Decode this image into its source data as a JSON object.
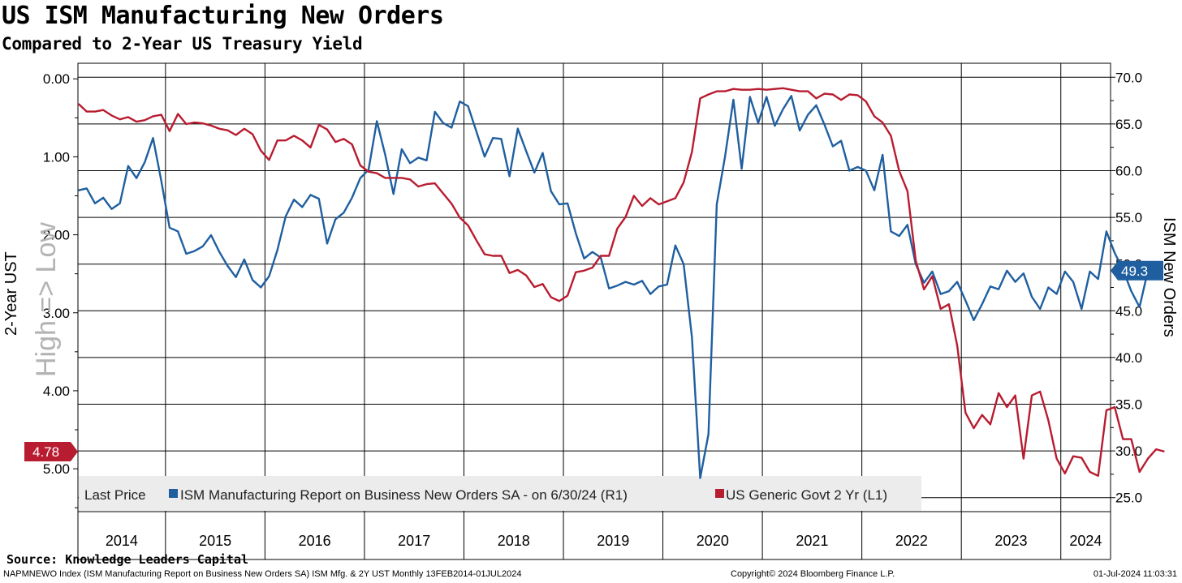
{
  "header": {
    "title": "US ISM Manufacturing New Orders",
    "subtitle": "Compared to 2-Year US Treasury Yield"
  },
  "source": "Source: Knowledge Leaders Capital",
  "footer": {
    "left": "NAPMNEWO Index (ISM Manufacturing Report on Business New Orders SA) ISM Mfg. & 2Y UST  Monthly 13FEB2014-01JUL2024",
    "middle": "Copyright© 2024 Bloomberg Finance L.P.",
    "right": "01-Jul-2024 11:03:31"
  },
  "colors": {
    "ism": "#1f5fa0",
    "ust": "#b81c30",
    "grid": "#000000",
    "legend_bg": "#ececec"
  },
  "chart_data": {
    "type": "line",
    "title": "US ISM Manufacturing New Orders",
    "subtitle": "Compared to 2-Year US Treasury Yield",
    "x_range": [
      2014.12,
      2024.5
    ],
    "years": [
      "2014",
      "2015",
      "2016",
      "2017",
      "2018",
      "2019",
      "2020",
      "2021",
      "2022",
      "2023",
      "2024"
    ],
    "left_axis": {
      "label": "2-Year UST",
      "inverted": true,
      "range": [
        -0.2,
        5.55
      ],
      "ticks": [
        "0.00",
        "1.00",
        "2.00",
        "3.00",
        "4.00",
        "5.00"
      ],
      "watermark": "High => Low"
    },
    "right_axis": {
      "label": "ISM New Orders",
      "range": [
        23.5,
        71.5
      ],
      "ticks": [
        "70.0",
        "65.0",
        "60.0",
        "55.0",
        "50.0",
        "45.0",
        "40.0",
        "35.0",
        "30.0",
        "25.0"
      ]
    },
    "legend": {
      "prefix": "Last Price",
      "ism_label": "ISM Manufacturing Report on Business New Orders SA -  on 6/30/24  (R1)",
      "ust_label": "US Generic Govt 2 Yr  (L1)",
      "placement": "bottom-left"
    },
    "last_values": {
      "ism": "49.3",
      "ust": "4.78"
    },
    "series": [
      {
        "name": "ISM Manufacturing Report on Business New Orders SA",
        "axis": "right",
        "values": [
          57.9,
          58.1,
          56.5,
          57.1,
          55.9,
          56.5,
          60.5,
          59.2,
          60.9,
          63.5,
          58.9,
          53.9,
          53.5,
          51.1,
          51.4,
          51.9,
          53.1,
          51.3,
          49.8,
          48.6,
          50.5,
          48.3,
          47.5,
          48.7,
          51.5,
          55.1,
          56.9,
          56.1,
          57.4,
          57.0,
          52.2,
          54.8,
          55.5,
          57.1,
          59.2,
          60.1,
          65.3,
          61.7,
          57.5,
          62.3,
          60.8,
          61.4,
          61.1,
          66.3,
          65.1,
          64.6,
          67.4,
          66.9,
          64.2,
          61.5,
          63.5,
          63.4,
          59.4,
          64.5,
          62.1,
          59.8,
          61.9,
          57.8,
          56.4,
          56.5,
          53.3,
          50.6,
          51.3,
          50.7,
          47.4,
          47.7,
          48.1,
          47.8,
          48.2,
          46.8,
          47.6,
          47.8,
          52.0,
          50.0,
          42.2,
          27.1,
          31.8,
          56.4,
          61.5,
          67.6,
          60.2,
          67.9,
          65.1,
          67.9,
          64.8,
          66.6,
          68.0,
          64.3,
          66.0,
          67.0,
          64.9,
          62.6,
          63.2,
          60.0,
          60.4,
          60.0,
          57.9,
          61.7,
          53.5,
          53.0,
          54.2,
          50.0,
          48.0,
          49.2,
          46.8,
          47.1,
          48.1,
          46.1,
          44.0,
          45.7,
          47.6,
          47.3,
          49.3,
          48.1,
          49.0,
          46.5,
          45.2,
          47.5,
          46.8,
          49.2,
          48.1,
          45.2,
          49.2,
          48.4,
          53.5,
          51.2,
          49.4,
          47.1,
          45.4,
          49.3
        ]
      },
      {
        "name": "US Generic Govt 2 Yr",
        "axis": "left",
        "values": [
          0.32,
          0.42,
          0.42,
          0.4,
          0.47,
          0.52,
          0.49,
          0.55,
          0.53,
          0.48,
          0.46,
          0.67,
          0.45,
          0.58,
          0.56,
          0.57,
          0.6,
          0.64,
          0.66,
          0.72,
          0.64,
          0.71,
          0.92,
          1.04,
          0.79,
          0.79,
          0.73,
          0.79,
          0.88,
          0.59,
          0.65,
          0.81,
          0.77,
          0.84,
          1.11,
          1.19,
          1.21,
          1.27,
          1.27,
          1.27,
          1.29,
          1.38,
          1.35,
          1.34,
          1.47,
          1.6,
          1.78,
          1.88,
          2.07,
          2.25,
          2.27,
          2.27,
          2.49,
          2.45,
          2.52,
          2.67,
          2.63,
          2.8,
          2.85,
          2.78,
          2.48,
          2.46,
          2.42,
          2.27,
          2.27,
          1.92,
          1.77,
          1.5,
          1.63,
          1.53,
          1.61,
          1.57,
          1.53,
          1.33,
          0.94,
          0.25,
          0.2,
          0.16,
          0.16,
          0.13,
          0.14,
          0.14,
          0.13,
          0.14,
          0.13,
          0.12,
          0.14,
          0.16,
          0.16,
          0.25,
          0.19,
          0.2,
          0.27,
          0.2,
          0.21,
          0.29,
          0.48,
          0.56,
          0.73,
          1.18,
          1.44,
          2.33,
          2.7,
          2.53,
          2.95,
          2.89,
          3.42,
          4.28,
          4.48,
          4.31,
          4.43,
          4.03,
          4.21,
          4.06,
          4.87,
          4.06,
          4.01,
          4.38,
          4.87,
          5.06,
          4.84,
          4.86,
          5.04,
          5.09,
          4.25,
          4.21,
          4.62,
          4.62,
          5.04,
          4.87,
          4.75,
          4.78
        ]
      }
    ]
  }
}
